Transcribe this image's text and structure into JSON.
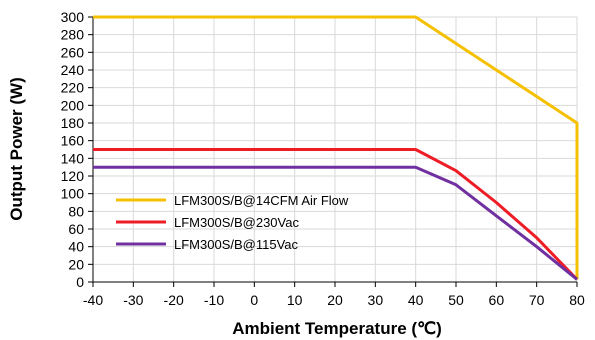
{
  "chart_data": {
    "type": "line",
    "title": "",
    "xlabel": "Ambient Temperature (℃)",
    "ylabel": "Output Power (W)",
    "xlim": [
      -40,
      80
    ],
    "ylim": [
      0,
      300
    ],
    "xticks": [
      -40,
      -30,
      -20,
      -10,
      0,
      10,
      20,
      30,
      40,
      50,
      60,
      70,
      80
    ],
    "yticks": [
      0,
      20,
      40,
      60,
      80,
      100,
      120,
      140,
      160,
      180,
      200,
      220,
      240,
      260,
      280,
      300
    ],
    "grid": true,
    "legend_position": "lower-left",
    "series": [
      {
        "name": "LFM300S/B@14CFM Air Flow",
        "color": "#f5c000",
        "points": [
          [
            -40,
            300
          ],
          [
            40,
            300
          ],
          [
            50,
            270
          ],
          [
            60,
            240
          ],
          [
            70,
            210
          ],
          [
            80,
            180
          ],
          [
            80,
            3
          ]
        ]
      },
      {
        "name": "LFM300S/B@230Vac",
        "color": "#ee1c25",
        "points": [
          [
            -40,
            150
          ],
          [
            40,
            150
          ],
          [
            50,
            126
          ],
          [
            60,
            90
          ],
          [
            70,
            50
          ],
          [
            80,
            3
          ]
        ]
      },
      {
        "name": "LFM300S/B@115Vac",
        "color": "#7030a0",
        "points": [
          [
            -40,
            130
          ],
          [
            40,
            130
          ],
          [
            50,
            110
          ],
          [
            60,
            75
          ],
          [
            70,
            40
          ],
          [
            80,
            3
          ]
        ]
      }
    ]
  }
}
